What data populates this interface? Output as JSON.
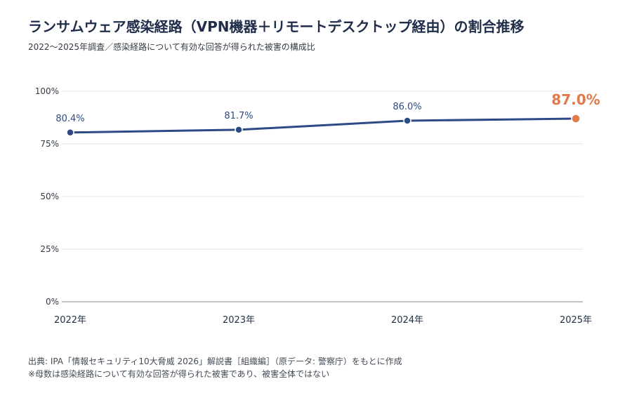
{
  "title": "ランサムウェア感染経路（VPN機器＋リモートデスクトップ経由）の割合推移",
  "subtitle": "2022〜2025年調査／感染経路について有効な回答が得られた被害の構成比",
  "footer": {
    "source": "出典: IPA「情報セキュリティ10大脅威 2026」解説書［組織編］（原データ: 警察庁）をもとに作成",
    "note": "※母数は感染経路について有効な回答が得られた被害であり、被害全体ではない"
  },
  "colors": {
    "line": "#2d4a86",
    "highlight": "#e07a4a",
    "grid": "#e3e6ea",
    "axis": "#9aa3ad",
    "text": "#333a44"
  },
  "chart_data": {
    "type": "line",
    "x": [
      "2022年",
      "2023年",
      "2024年",
      "2025年"
    ],
    "series": [
      {
        "values": [
          80.4,
          81.7,
          86.0,
          87.0
        ],
        "labels": [
          "80.4%",
          "81.7%",
          "86.0%",
          "87.0%"
        ]
      }
    ],
    "yticks": [
      0,
      25,
      50,
      75,
      100
    ],
    "ytick_labels": [
      "0%",
      "25%",
      "50%",
      "75%",
      "100%"
    ],
    "ylim": [
      0,
      100
    ],
    "highlight_index": 3,
    "grid": true,
    "legend": "none"
  }
}
